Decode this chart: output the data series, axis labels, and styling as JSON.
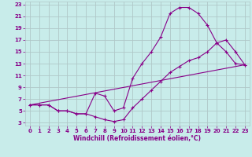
{
  "xlabel": "Windchill (Refroidissement éolien,°C)",
  "bg_color": "#c8ecea",
  "line_color": "#880088",
  "grid_color": "#b0c8c8",
  "xlim": [
    -0.5,
    23.5
  ],
  "ylim": [
    2.5,
    23.5
  ],
  "xticks": [
    0,
    1,
    2,
    3,
    4,
    5,
    6,
    7,
    8,
    9,
    10,
    11,
    12,
    13,
    14,
    15,
    16,
    17,
    18,
    19,
    20,
    21,
    22,
    23
  ],
  "yticks": [
    3,
    5,
    7,
    9,
    11,
    13,
    15,
    17,
    19,
    21,
    23
  ],
  "curve1_x": [
    0,
    1,
    2,
    3,
    4,
    5,
    6,
    7,
    8,
    9,
    10,
    11,
    12,
    13,
    14,
    15,
    16,
    17,
    18,
    19,
    20,
    21,
    22,
    23
  ],
  "curve1_y": [
    6,
    6,
    6,
    5,
    5,
    4.5,
    4.5,
    8,
    7.5,
    5,
    5.5,
    10.5,
    13,
    15,
    17.5,
    21.5,
    22.5,
    22.5,
    21.5,
    19.5,
    16.5,
    15,
    13,
    12.8
  ],
  "curve2_x": [
    0,
    1,
    2,
    3,
    4,
    5,
    6,
    7,
    8,
    9,
    10,
    11,
    12,
    13,
    14,
    15,
    16,
    17,
    18,
    19,
    20,
    21,
    22,
    23
  ],
  "curve2_y": [
    6,
    6,
    6,
    5,
    5,
    4.5,
    4.5,
    4,
    3.5,
    3.2,
    3.5,
    5.5,
    7,
    8.5,
    10,
    11.5,
    12.5,
    13.5,
    14,
    15,
    16.5,
    17,
    15,
    12.8
  ],
  "curve3_x": [
    0,
    23
  ],
  "curve3_y": [
    6,
    12.8
  ],
  "marker": "+",
  "tick_fontsize": 5.0,
  "xlabel_fontsize": 5.5,
  "lw": 0.8,
  "ms": 3.5
}
